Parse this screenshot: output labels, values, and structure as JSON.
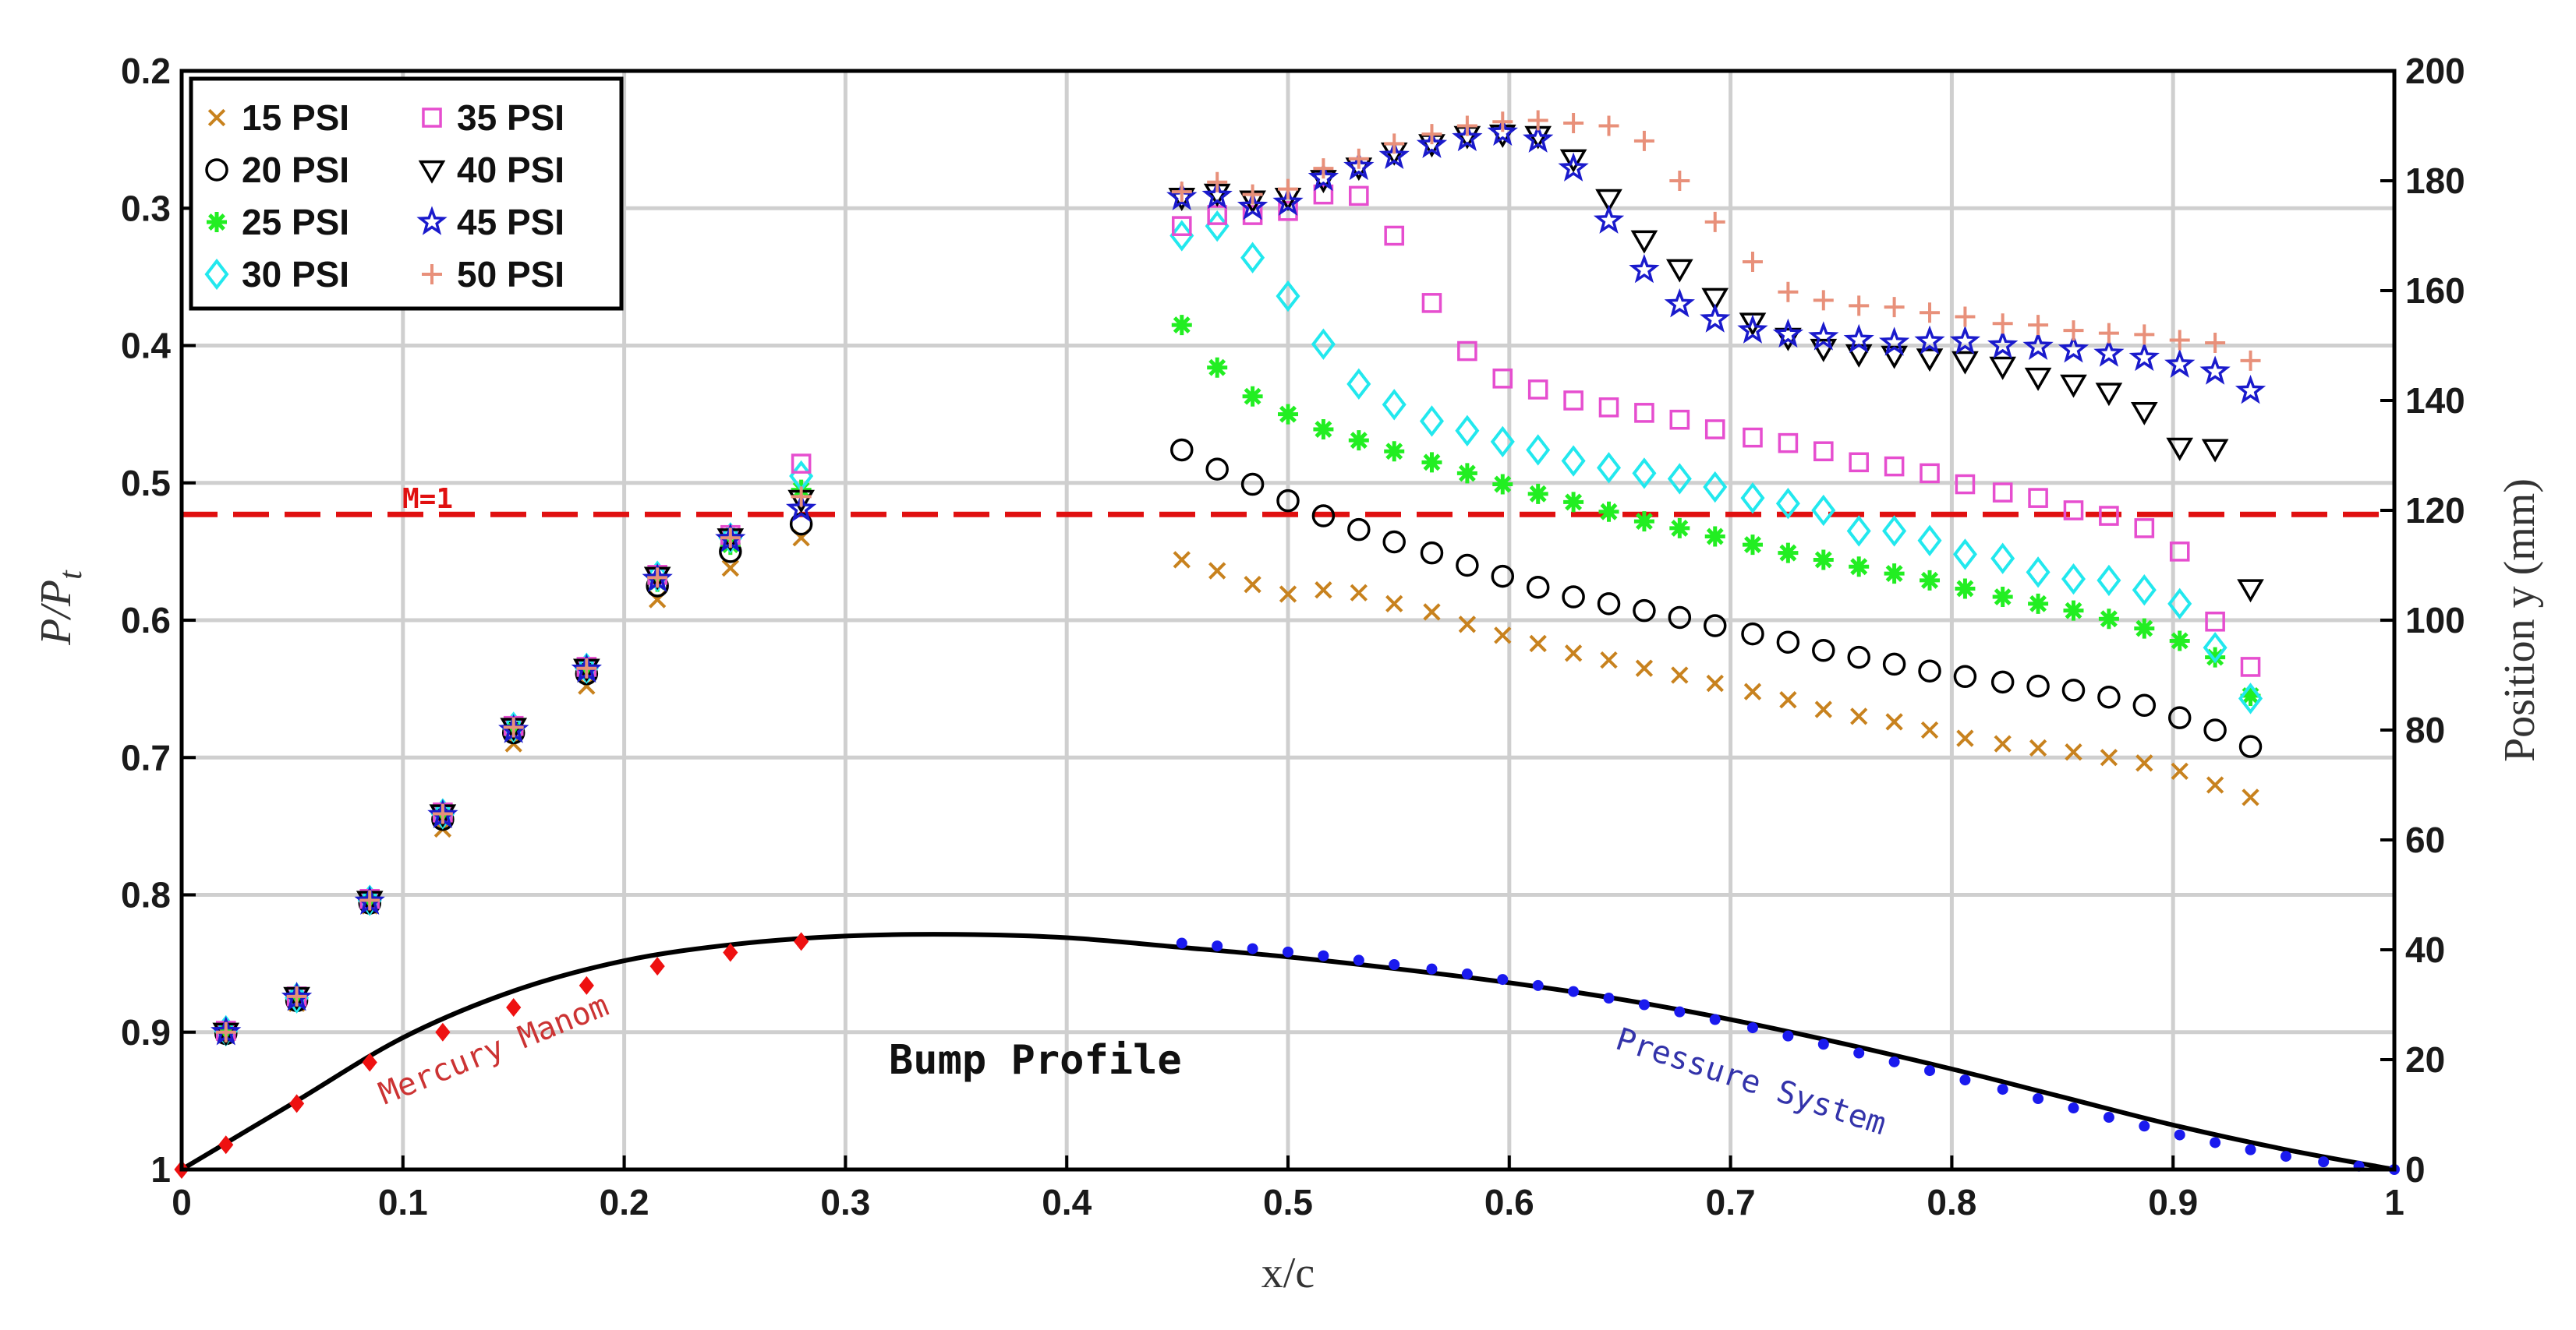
{
  "chart_data": {
    "type": "scatter",
    "xlabel": "x/c",
    "ylabel_left": "P/Pt",
    "ylabel_left_main": "P/P",
    "ylabel_left_sub": "t",
    "ylabel_right": "Position y (mm)",
    "xlim": [
      0,
      1
    ],
    "ylim_left": [
      0.2,
      1.0
    ],
    "ylim_left_reversed": true,
    "ylim_right": [
      0,
      200
    ],
    "x_ticks": [
      "0",
      "0.1",
      "0.2",
      "0.3",
      "0.4",
      "0.5",
      "0.6",
      "0.7",
      "0.8",
      "0.9",
      "1"
    ],
    "y_left_ticks": [
      "0.2",
      "0.3",
      "0.4",
      "0.5",
      "0.6",
      "0.7",
      "0.8",
      "0.9",
      "1"
    ],
    "y_right_ticks": [
      "200",
      "180",
      "160",
      "140",
      "120",
      "100",
      "80",
      "60",
      "40",
      "20",
      "0"
    ],
    "grid": true,
    "legend_location": "top-left",
    "annotations": [
      {
        "text": "M=1",
        "color": "#e01010"
      },
      {
        "text": "Mercury Manom",
        "color": "#cc3333"
      },
      {
        "text": "Bump Profile",
        "color": "#111111"
      },
      {
        "text": "Pressure System",
        "color": "#3333aa"
      }
    ],
    "sonic_line": {
      "label": "M=1",
      "value": 0.523,
      "color": "#e01010"
    },
    "bump_profile": {
      "label": "Bump Profile",
      "axis": "right",
      "x": [
        0,
        0.05,
        0.1,
        0.15,
        0.2,
        0.25,
        0.3,
        0.35,
        0.4,
        0.45,
        0.5,
        0.55,
        0.6,
        0.65,
        0.7,
        0.75,
        0.8,
        0.85,
        0.9,
        0.95,
        1.0
      ],
      "y": [
        0,
        12,
        24,
        32.5,
        38,
        41,
        42.5,
        42.8,
        42.2,
        40.5,
        38.7,
        36.5,
        34,
        31,
        27.3,
        23,
        18.3,
        13.2,
        8.1,
        3.7,
        0
      ],
      "color": "#000000"
    },
    "mercury_taps": {
      "label": "Mercury Manom",
      "axis": "right",
      "color": "#ee1111",
      "x": [
        0,
        0.02,
        0.052,
        0.085,
        0.118,
        0.15,
        0.183,
        0.215,
        0.248,
        0.28
      ],
      "y": [
        0,
        4.5,
        12,
        19.5,
        25,
        29.5,
        33.5,
        37,
        39.5,
        41.5
      ]
    },
    "pressure_system_taps": {
      "label": "Pressure System",
      "axis": "right",
      "color": "#1a1aee",
      "x": [
        0.452,
        0.468,
        0.484,
        0.5,
        0.516,
        0.532,
        0.548,
        0.565,
        0.581,
        0.597,
        0.613,
        0.629,
        0.645,
        0.661,
        0.677,
        0.693,
        0.71,
        0.726,
        0.742,
        0.758,
        0.774,
        0.79,
        0.806,
        0.823,
        0.839,
        0.855,
        0.871,
        0.887,
        0.903,
        0.919,
        0.935,
        0.951,
        0.968,
        0.984,
        1.0
      ],
      "y": [
        41.2,
        40.7,
        40.2,
        39.6,
        38.9,
        38.1,
        37.3,
        36.5,
        35.6,
        34.6,
        33.5,
        32.4,
        31.2,
        30.0,
        28.7,
        27.3,
        25.8,
        24.3,
        22.8,
        21.2,
        19.6,
        18.0,
        16.3,
        14.6,
        12.9,
        11.2,
        9.5,
        7.9,
        6.3,
        4.9,
        3.6,
        2.4,
        1.4,
        0.6,
        0
      ]
    },
    "x": [
      0.02,
      0.052,
      0.085,
      0.118,
      0.15,
      0.183,
      0.215,
      0.248,
      0.28,
      0.452,
      0.468,
      0.484,
      0.5,
      0.516,
      0.532,
      0.548,
      0.565,
      0.581,
      0.597,
      0.613,
      0.629,
      0.645,
      0.661,
      0.677,
      0.693,
      0.71,
      0.726,
      0.742,
      0.758,
      0.774,
      0.79,
      0.806,
      0.823,
      0.839,
      0.855,
      0.871,
      0.887,
      0.903,
      0.919,
      0.935
    ],
    "series": [
      {
        "name": "15 PSI",
        "marker": "x",
        "color": "#c8821e",
        "values": [
          0.902,
          0.879,
          0.808,
          0.752,
          0.69,
          0.648,
          0.585,
          0.562,
          0.54,
          0.556,
          0.564,
          0.574,
          0.581,
          0.578,
          0.58,
          0.588,
          0.594,
          0.603,
          0.611,
          0.617,
          0.624,
          0.629,
          0.635,
          0.64,
          0.646,
          0.652,
          0.658,
          0.665,
          0.67,
          0.674,
          0.68,
          0.686,
          0.69,
          0.693,
          0.696,
          0.7,
          0.704,
          0.71,
          0.72,
          0.729
        ]
      },
      {
        "name": "20 PSI",
        "marker": "o",
        "color": "#000000",
        "values": [
          0.901,
          0.877,
          0.806,
          0.745,
          0.682,
          0.639,
          0.575,
          0.55,
          0.53,
          0.476,
          0.49,
          0.501,
          0.513,
          0.524,
          0.534,
          0.543,
          0.551,
          0.56,
          0.568,
          0.576,
          0.583,
          0.588,
          0.593,
          0.598,
          0.604,
          0.61,
          0.616,
          0.622,
          0.627,
          0.632,
          0.637,
          0.641,
          0.645,
          0.648,
          0.651,
          0.656,
          0.662,
          0.671,
          0.68,
          0.692
        ]
      },
      {
        "name": "25 PSI",
        "marker": "*",
        "color": "#22ee22",
        "values": [
          0.9,
          0.876,
          0.805,
          0.743,
          0.68,
          0.637,
          0.572,
          0.545,
          0.505,
          0.385,
          0.416,
          0.437,
          0.45,
          0.461,
          0.469,
          0.477,
          0.485,
          0.493,
          0.501,
          0.508,
          0.514,
          0.521,
          0.528,
          0.533,
          0.539,
          0.545,
          0.551,
          0.556,
          0.561,
          0.566,
          0.571,
          0.577,
          0.583,
          0.588,
          0.593,
          0.599,
          0.606,
          0.615,
          0.627,
          0.655
        ]
      },
      {
        "name": "30 PSI",
        "marker": "d",
        "color": "#22e8ee",
        "values": [
          0.899,
          0.875,
          0.804,
          0.741,
          0.678,
          0.635,
          0.568,
          0.54,
          0.495,
          0.32,
          0.313,
          0.336,
          0.364,
          0.399,
          0.428,
          0.443,
          0.455,
          0.462,
          0.47,
          0.476,
          0.484,
          0.489,
          0.493,
          0.497,
          0.503,
          0.511,
          0.515,
          0.52,
          0.535,
          0.535,
          0.542,
          0.552,
          0.555,
          0.565,
          0.57,
          0.571,
          0.578,
          0.588,
          0.62,
          0.657
        ]
      },
      {
        "name": "35 PSI",
        "marker": "s",
        "color": "#e64ecf",
        "values": [
          0.899,
          0.874,
          0.803,
          0.74,
          0.677,
          0.634,
          0.567,
          0.538,
          0.486,
          0.313,
          0.305,
          0.305,
          0.302,
          0.29,
          0.291,
          0.32,
          0.369,
          0.404,
          0.424,
          0.432,
          0.44,
          0.445,
          0.449,
          0.454,
          0.461,
          0.467,
          0.471,
          0.477,
          0.485,
          0.488,
          0.493,
          0.501,
          0.507,
          0.511,
          0.52,
          0.524,
          0.533,
          0.55,
          0.601,
          0.634
        ]
      },
      {
        "name": "40 PSI",
        "marker": "v",
        "color": "#000000",
        "values": [
          0.9,
          0.874,
          0.804,
          0.741,
          0.678,
          0.635,
          0.568,
          0.54,
          0.512,
          0.292,
          0.289,
          0.294,
          0.292,
          0.279,
          0.27,
          0.259,
          0.253,
          0.247,
          0.246,
          0.247,
          0.264,
          0.293,
          0.323,
          0.344,
          0.365,
          0.383,
          0.394,
          0.402,
          0.406,
          0.407,
          0.409,
          0.411,
          0.415,
          0.423,
          0.428,
          0.434,
          0.448,
          0.474,
          0.475,
          0.577
        ]
      },
      {
        "name": "45 PSI",
        "marker": "p",
        "color": "#1a1acc",
        "values": [
          0.9,
          0.875,
          0.805,
          0.742,
          0.68,
          0.636,
          0.57,
          0.541,
          0.519,
          0.292,
          0.291,
          0.299,
          0.296,
          0.278,
          0.27,
          0.262,
          0.254,
          0.249,
          0.245,
          0.25,
          0.271,
          0.309,
          0.345,
          0.37,
          0.381,
          0.389,
          0.392,
          0.394,
          0.396,
          0.398,
          0.397,
          0.397,
          0.4,
          0.401,
          0.403,
          0.406,
          0.409,
          0.414,
          0.419,
          0.433
        ]
      },
      {
        "name": "50 PSI",
        "marker": "+",
        "color": "#e8907a",
        "values": [
          0.9,
          0.874,
          0.804,
          0.741,
          0.678,
          0.635,
          0.569,
          0.54,
          0.51,
          0.288,
          0.281,
          0.29,
          0.286,
          0.271,
          0.264,
          0.253,
          0.246,
          0.24,
          0.237,
          0.236,
          0.238,
          0.24,
          0.251,
          0.28,
          0.31,
          0.339,
          0.361,
          0.367,
          0.371,
          0.372,
          0.376,
          0.379,
          0.384,
          0.385,
          0.389,
          0.391,
          0.392,
          0.396,
          0.398,
          0.411
        ]
      }
    ]
  }
}
